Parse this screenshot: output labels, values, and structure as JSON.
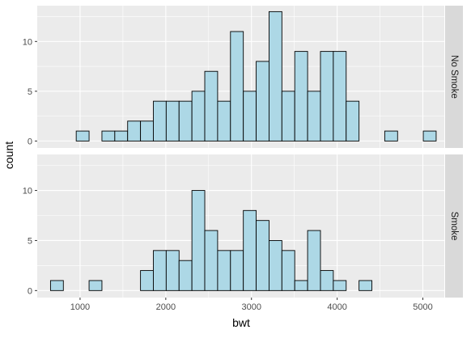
{
  "chart_data": {
    "type": "histogram",
    "facets": [
      {
        "label": "No Smoke",
        "bins": [
          {
            "x": 730,
            "count": 0
          },
          {
            "x": 1030,
            "count": 1
          },
          {
            "x": 1180,
            "count": 0
          },
          {
            "x": 1330,
            "count": 1
          },
          {
            "x": 1480,
            "count": 1
          },
          {
            "x": 1630,
            "count": 2
          },
          {
            "x": 1780,
            "count": 2
          },
          {
            "x": 1930,
            "count": 4
          },
          {
            "x": 2080,
            "count": 4
          },
          {
            "x": 2230,
            "count": 4
          },
          {
            "x": 2380,
            "count": 5
          },
          {
            "x": 2530,
            "count": 7
          },
          {
            "x": 2680,
            "count": 4
          },
          {
            "x": 2830,
            "count": 11
          },
          {
            "x": 2980,
            "count": 5
          },
          {
            "x": 3130,
            "count": 8
          },
          {
            "x": 3280,
            "count": 13
          },
          {
            "x": 3430,
            "count": 5
          },
          {
            "x": 3580,
            "count": 9
          },
          {
            "x": 3730,
            "count": 5
          },
          {
            "x": 3880,
            "count": 9
          },
          {
            "x": 4030,
            "count": 9
          },
          {
            "x": 4180,
            "count": 4
          },
          {
            "x": 4330,
            "count": 0
          },
          {
            "x": 4480,
            "count": 0
          },
          {
            "x": 4630,
            "count": 1
          },
          {
            "x": 4780,
            "count": 0
          },
          {
            "x": 4930,
            "count": 0
          },
          {
            "x": 5080,
            "count": 1
          }
        ]
      },
      {
        "label": "Smoke",
        "bins": [
          {
            "x": 730,
            "count": 1
          },
          {
            "x": 880,
            "count": 0
          },
          {
            "x": 1030,
            "count": 0
          },
          {
            "x": 1180,
            "count": 1
          },
          {
            "x": 1330,
            "count": 0
          },
          {
            "x": 1480,
            "count": 0
          },
          {
            "x": 1630,
            "count": 0
          },
          {
            "x": 1780,
            "count": 2
          },
          {
            "x": 1930,
            "count": 4
          },
          {
            "x": 2080,
            "count": 4
          },
          {
            "x": 2230,
            "count": 3
          },
          {
            "x": 2380,
            "count": 10
          },
          {
            "x": 2530,
            "count": 6
          },
          {
            "x": 2680,
            "count": 4
          },
          {
            "x": 2830,
            "count": 4
          },
          {
            "x": 2980,
            "count": 8
          },
          {
            "x": 3130,
            "count": 7
          },
          {
            "x": 3280,
            "count": 5
          },
          {
            "x": 3430,
            "count": 4
          },
          {
            "x": 3580,
            "count": 1
          },
          {
            "x": 3730,
            "count": 6
          },
          {
            "x": 3880,
            "count": 2
          },
          {
            "x": 4030,
            "count": 1
          },
          {
            "x": 4180,
            "count": 0
          },
          {
            "x": 4330,
            "count": 1
          },
          {
            "x": 4480,
            "count": 0
          },
          {
            "x": 4630,
            "count": 0
          },
          {
            "x": 4780,
            "count": 0
          },
          {
            "x": 4930,
            "count": 0
          },
          {
            "x": 5080,
            "count": 0
          }
        ]
      }
    ],
    "xlabel": "bwt",
    "ylabel": "count",
    "xlim": [
      500,
      5250
    ],
    "ylim": [
      -0.7,
      13.6
    ],
    "xticks": [
      "1000",
      "2000",
      "3000",
      "4000",
      "5000"
    ],
    "yticks": [
      "0",
      "5",
      "10"
    ],
    "grid": true,
    "colors": {
      "fill": "#add8e6",
      "outline": "#000000",
      "panel": "#ebebeb",
      "grid": "#ffffff",
      "strip": "#d9d9d9",
      "text": "#4d4d4d",
      "title": "#000000"
    }
  }
}
